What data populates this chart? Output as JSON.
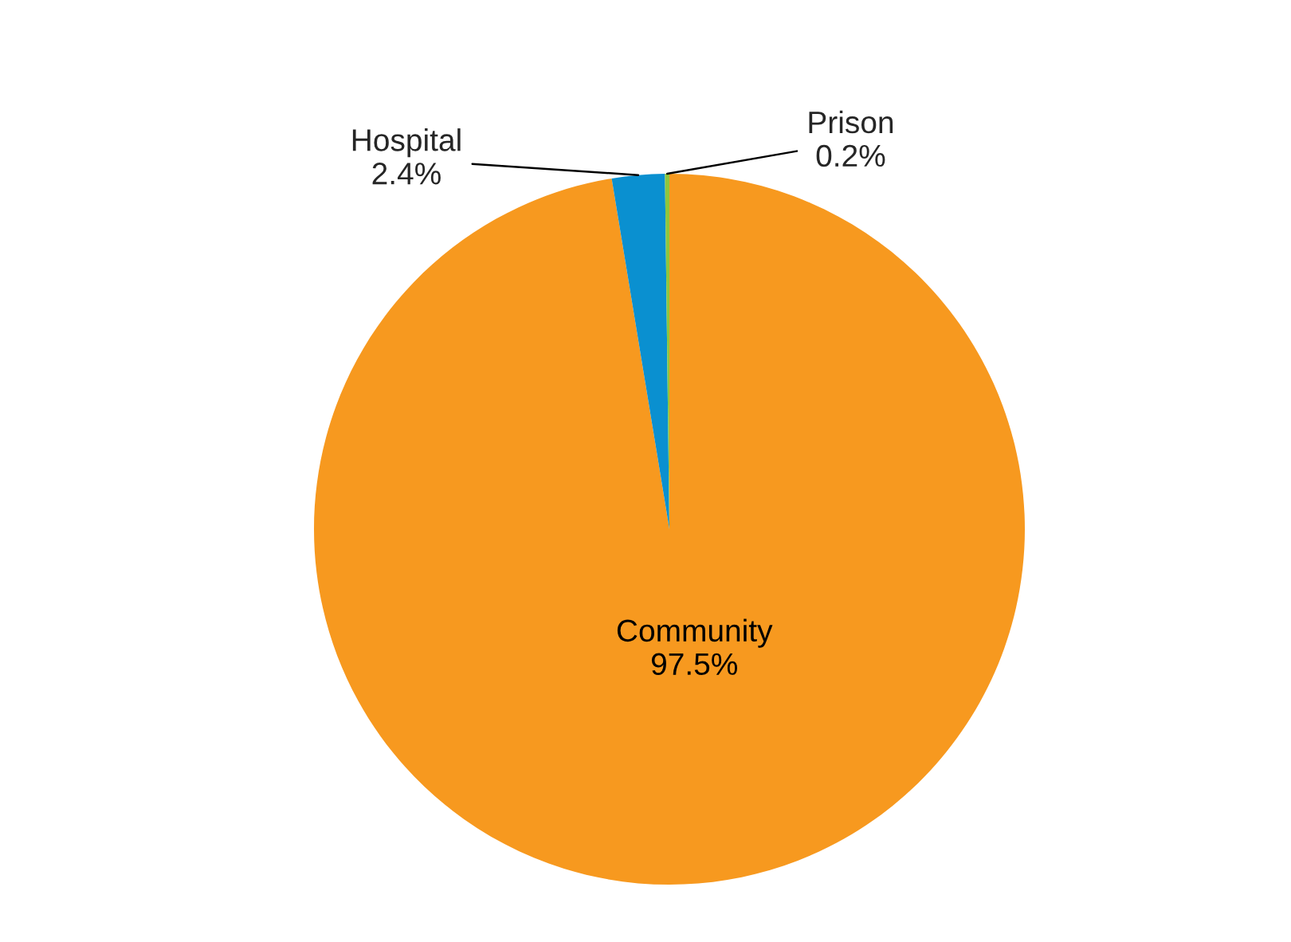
{
  "chart_data": {
    "type": "pie",
    "categories": [
      "Community",
      "Hospital",
      "Prison"
    ],
    "values": [
      97.5,
      2.4,
      0.2
    ],
    "colors": [
      "#f7991f",
      "#0a90d0",
      "#8dc63f"
    ],
    "value_labels": [
      "97.5%",
      "2.4%",
      "0.2%"
    ]
  }
}
